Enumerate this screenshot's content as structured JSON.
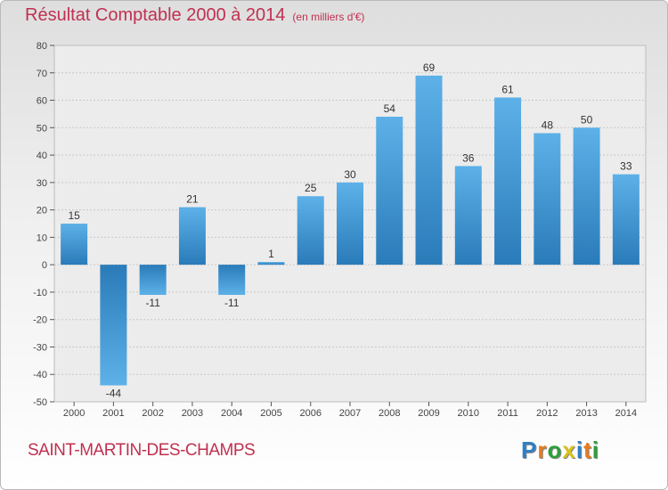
{
  "header": {
    "title": "Résultat Comptable 2000 à 2014",
    "subtitle": "(en milliers d'€)"
  },
  "footer": {
    "commune": "SAINT-MARTIN-DES-CHAMPS",
    "logo_letters": [
      "P",
      "r",
      "o",
      "x",
      "i",
      "t",
      "i"
    ],
    "logo_colors": [
      "#2f7fc4",
      "#e87a1e",
      "#2f9e3a",
      "#d9c21a",
      "#2f7fc4",
      "#e87a1e",
      "#2f9e3a"
    ]
  },
  "chart_data": {
    "type": "bar",
    "title": "Résultat Comptable 2000 à 2014",
    "subtitle": "(en milliers d'€)",
    "categories": [
      "2000",
      "2001",
      "2002",
      "2003",
      "2004",
      "2005",
      "2006",
      "2007",
      "2008",
      "2009",
      "2010",
      "2011",
      "2012",
      "2013",
      "2014"
    ],
    "values": [
      15,
      -44,
      -11,
      21,
      -11,
      1,
      25,
      30,
      54,
      69,
      36,
      61,
      48,
      50,
      33
    ],
    "labels": [
      "15",
      "-44",
      "-11",
      "21",
      "-11",
      "1",
      "25",
      "30",
      "54",
      "69",
      "36",
      "61",
      "48",
      "50",
      "33"
    ],
    "ylim": [
      -50,
      80
    ],
    "yticks": [
      80,
      70,
      60,
      50,
      40,
      30,
      20,
      10,
      0,
      -10,
      -20,
      -30,
      -40,
      -50
    ],
    "grid": true,
    "colors": {
      "bar_light": "#5aaee6",
      "bar_dark": "#2a7ab8",
      "grid": "#c8c8c8",
      "axis": "#555555"
    }
  }
}
